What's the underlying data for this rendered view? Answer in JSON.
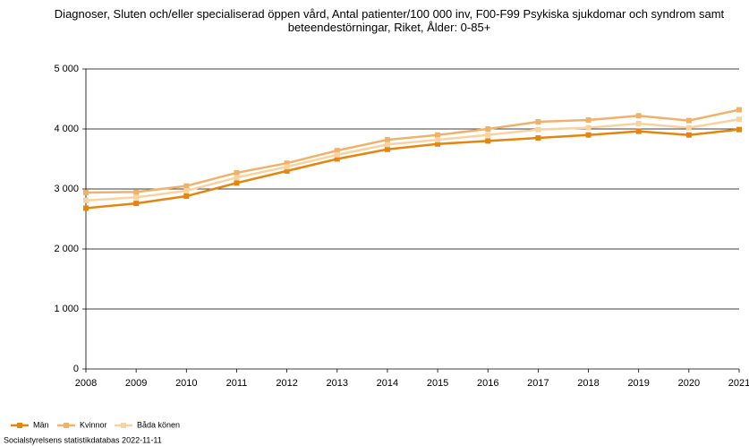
{
  "chart_data": {
    "type": "line",
    "title": "Diagnoser, Sluten och/eller specialiserad öppen vård, Antal patienter/100 000 inv, F00-F99 Psykiska sjukdomar och syndrom samt beteendestörningar, Riket, Ålder: 0-85+",
    "x": [
      2008,
      2009,
      2010,
      2011,
      2012,
      2013,
      2014,
      2015,
      2016,
      2017,
      2018,
      2019,
      2020,
      2021
    ],
    "xlim": [
      2008,
      2021
    ],
    "xticks": [
      2008,
      2009,
      2010,
      2011,
      2012,
      2013,
      2014,
      2015,
      2016,
      2017,
      2018,
      2019,
      2020,
      2021
    ],
    "ylim": [
      0,
      5000
    ],
    "yticks": [
      0,
      {
        "value": 1000,
        "label": "1 000"
      },
      {
        "value": 2000,
        "label": "2 000"
      },
      {
        "value": 3000,
        "label": "3 000"
      },
      {
        "value": 4000,
        "label": "4 000"
      },
      {
        "value": 5000,
        "label": "5 000"
      }
    ],
    "grid": true,
    "series": [
      {
        "name": "Män",
        "color": "#e5850f",
        "values": [
          2680,
          2760,
          2880,
          3100,
          3300,
          3500,
          3660,
          3750,
          3800,
          3850,
          3900,
          3960,
          3900,
          3990
        ]
      },
      {
        "name": "Kvinnor",
        "color": "#f0b26a",
        "values": [
          2940,
          2950,
          3050,
          3270,
          3430,
          3640,
          3820,
          3900,
          4000,
          4120,
          4150,
          4220,
          4140,
          4320
        ]
      },
      {
        "name": "Båda könen",
        "color": "#f8d3a0",
        "values": [
          2810,
          2860,
          2970,
          3190,
          3370,
          3570,
          3740,
          3820,
          3900,
          3990,
          4020,
          4090,
          4020,
          4160
        ]
      }
    ],
    "source": "Socialstyrelsens statistikdatabas 2022-11-11"
  }
}
